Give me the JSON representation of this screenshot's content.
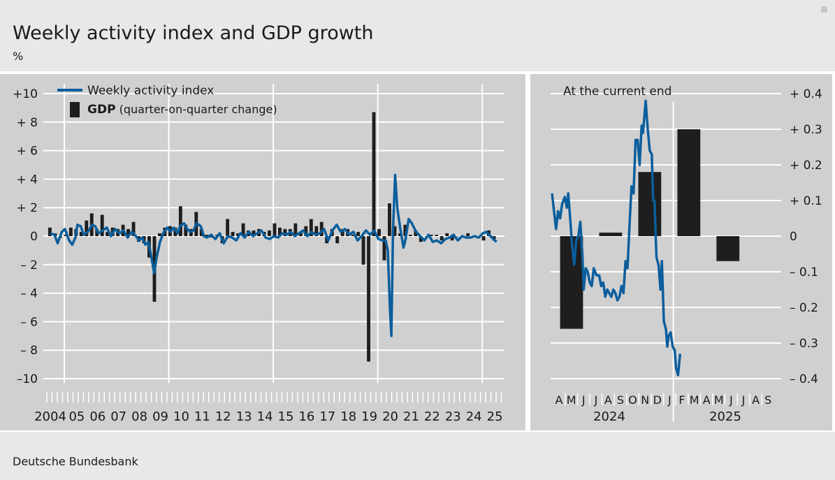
{
  "title": "Weekly activity index and GDP growth",
  "unit": "%",
  "source": "Deutsche Bundesbank",
  "colors": {
    "index_line": "#0b5e9c",
    "gdp_bar": "#1e1e1e",
    "panel": "#d0d0d0"
  },
  "chart_data": [
    {
      "type": "bar+line",
      "ylim": [
        -10,
        10
      ],
      "yticks": [
        10,
        8,
        6,
        4,
        2,
        0,
        -2,
        -4,
        -6,
        -8,
        -10
      ],
      "ytick_labels": [
        "+10",
        "+ 8",
        "+ 6",
        "+ 4",
        "+ 2",
        "0",
        "– 2",
        "– 4",
        "– 6",
        "– 8",
        "–10"
      ],
      "xlim": [
        2004,
        2026
      ],
      "year_labels": [
        "2004",
        "05",
        "06",
        "07",
        "08",
        "09",
        "10",
        "11",
        "12",
        "13",
        "14",
        "15",
        "16",
        "17",
        "18",
        "19",
        "20",
        "21",
        "22",
        "23",
        "24",
        "25"
      ],
      "legend": [
        {
          "marker": "line",
          "label": "Weekly activity index",
          "bold": false
        },
        {
          "marker": "bar",
          "label_bold": "GDP",
          "label_rest": " (quarter-on-quarter change)"
        }
      ],
      "gdp_series": {
        "name": "GDP",
        "start": 2004.0,
        "step": 0.25,
        "values": [
          0.6,
          0.2,
          -0.1,
          0.1,
          0.6,
          0.5,
          0.3,
          1.1,
          1.6,
          0.5,
          1.5,
          0.3,
          0.6,
          0.5,
          0.8,
          0.5,
          1.0,
          -0.4,
          -0.5,
          -1.5,
          -4.6,
          0.2,
          0.6,
          0.7,
          0.6,
          2.1,
          0.8,
          0.5,
          1.7,
          0.5,
          0.1,
          -0.1,
          0.1,
          -0.5,
          1.2,
          0.3,
          0.2,
          0.9,
          0.4,
          0.4,
          0.5,
          0.3,
          0.4,
          0.9,
          0.6,
          0.5,
          0.5,
          0.9,
          0.3,
          0.7,
          1.2,
          0.7,
          1.0,
          -0.5,
          0.5,
          -0.5,
          0.5,
          0.5,
          0.1,
          0.3,
          -2.0,
          -8.8,
          8.7,
          0.5,
          -1.7,
          2.3,
          0.7,
          0.2,
          0.8,
          0.1,
          0.4,
          -0.4,
          0.0,
          0.1,
          0.1,
          -0.3,
          0.2,
          -0.3,
          0.0,
          0.0,
          0.2,
          0.0,
          0.0,
          -0.3,
          0.4,
          -0.3
        ]
      },
      "index_series": {
        "name": "Weekly activity index",
        "points": [
          [
            2004.0,
            0.2
          ],
          [
            2004.2,
            0.1
          ],
          [
            2004.35,
            -0.5
          ],
          [
            2004.55,
            0.3
          ],
          [
            2004.7,
            0.5
          ],
          [
            2004.9,
            -0.3
          ],
          [
            2005.05,
            -0.6
          ],
          [
            2005.2,
            -0.1
          ],
          [
            2005.3,
            0.8
          ],
          [
            2005.45,
            0.7
          ],
          [
            2005.6,
            0.1
          ],
          [
            2005.8,
            0.3
          ],
          [
            2006.0,
            0.8
          ],
          [
            2006.15,
            0.7
          ],
          [
            2006.3,
            0.2
          ],
          [
            2006.5,
            0.4
          ],
          [
            2006.7,
            0.6
          ],
          [
            2006.9,
            0.0
          ],
          [
            2007.1,
            0.5
          ],
          [
            2007.3,
            0.2
          ],
          [
            2007.5,
            0.4
          ],
          [
            2007.7,
            -0.1
          ],
          [
            2007.9,
            0.3
          ],
          [
            2008.1,
            0.0
          ],
          [
            2008.25,
            -0.3
          ],
          [
            2008.4,
            -0.1
          ],
          [
            2008.55,
            -0.6
          ],
          [
            2008.7,
            -0.4
          ],
          [
            2008.85,
            -1.6
          ],
          [
            2008.97,
            -2.6
          ],
          [
            2009.1,
            -1.4
          ],
          [
            2009.25,
            -0.4
          ],
          [
            2009.4,
            0.2
          ],
          [
            2009.6,
            0.6
          ],
          [
            2009.75,
            0.3
          ],
          [
            2009.9,
            0.6
          ],
          [
            2010.1,
            0.2
          ],
          [
            2010.2,
            0.7
          ],
          [
            2010.4,
            0.9
          ],
          [
            2010.55,
            0.5
          ],
          [
            2010.7,
            0.3
          ],
          [
            2010.85,
            0.4
          ],
          [
            2011.0,
            0.9
          ],
          [
            2011.2,
            0.7
          ],
          [
            2011.35,
            0.0
          ],
          [
            2011.5,
            -0.1
          ],
          [
            2011.7,
            0.1
          ],
          [
            2011.9,
            -0.2
          ],
          [
            2012.1,
            0.2
          ],
          [
            2012.3,
            -0.5
          ],
          [
            2012.5,
            0.0
          ],
          [
            2012.7,
            -0.1
          ],
          [
            2012.9,
            -0.3
          ],
          [
            2013.1,
            0.2
          ],
          [
            2013.3,
            -0.1
          ],
          [
            2013.5,
            0.3
          ],
          [
            2013.7,
            0.0
          ],
          [
            2013.9,
            0.2
          ],
          [
            2014.1,
            0.4
          ],
          [
            2014.3,
            -0.1
          ],
          [
            2014.5,
            -0.2
          ],
          [
            2014.7,
            0.0
          ],
          [
            2014.9,
            -0.1
          ],
          [
            2015.1,
            0.2
          ],
          [
            2015.3,
            0.1
          ],
          [
            2015.5,
            0.3
          ],
          [
            2015.7,
            0.0
          ],
          [
            2015.9,
            0.2
          ],
          [
            2016.1,
            0.4
          ],
          [
            2016.3,
            0.0
          ],
          [
            2016.5,
            0.3
          ],
          [
            2016.7,
            0.1
          ],
          [
            2016.9,
            0.2
          ],
          [
            2017.1,
            0.5
          ],
          [
            2017.3,
            -0.3
          ],
          [
            2017.5,
            0.4
          ],
          [
            2017.7,
            0.8
          ],
          [
            2017.9,
            0.3
          ],
          [
            2018.1,
            0.5
          ],
          [
            2018.3,
            0.1
          ],
          [
            2018.5,
            0.3
          ],
          [
            2018.7,
            -0.3
          ],
          [
            2018.9,
            0.0
          ],
          [
            2019.1,
            0.4
          ],
          [
            2019.3,
            0.1
          ],
          [
            2019.5,
            0.4
          ],
          [
            2019.7,
            -0.2
          ],
          [
            2019.9,
            -0.3
          ],
          [
            2020.05,
            -0.3
          ],
          [
            2020.15,
            -1.0
          ],
          [
            2020.25,
            -5.0
          ],
          [
            2020.32,
            -7.0
          ],
          [
            2020.4,
            0.5
          ],
          [
            2020.5,
            4.3
          ],
          [
            2020.6,
            2.0
          ],
          [
            2020.75,
            0.5
          ],
          [
            2020.9,
            -0.8
          ],
          [
            2021.0,
            -0.2
          ],
          [
            2021.15,
            1.2
          ],
          [
            2021.3,
            0.9
          ],
          [
            2021.5,
            0.3
          ],
          [
            2021.7,
            0.0
          ],
          [
            2021.9,
            -0.3
          ],
          [
            2022.1,
            0.1
          ],
          [
            2022.3,
            -0.4
          ],
          [
            2022.5,
            -0.3
          ],
          [
            2022.7,
            -0.5
          ],
          [
            2022.9,
            -0.2
          ],
          [
            2023.1,
            -0.1
          ],
          [
            2023.3,
            0.1
          ],
          [
            2023.5,
            -0.3
          ],
          [
            2023.7,
            0.0
          ],
          [
            2023.9,
            -0.1
          ],
          [
            2024.1,
            -0.1
          ],
          [
            2024.3,
            0.0
          ],
          [
            2024.5,
            -0.1
          ],
          [
            2024.7,
            0.2
          ],
          [
            2024.85,
            0.3
          ],
          [
            2025.0,
            0.1
          ],
          [
            2025.2,
            -0.2
          ],
          [
            2025.35,
            -0.4
          ]
        ]
      }
    },
    {
      "type": "bar+line",
      "title": "At the current end",
      "ylim": [
        -0.4,
        0.4
      ],
      "yticks": [
        0.4,
        0.3,
        0.2,
        0.1,
        0,
        -0.1,
        -0.2,
        -0.3,
        -0.4
      ],
      "ytick_labels": [
        "+ 0.4",
        "+ 0.3",
        "+ 0.2",
        "+ 0.1",
        "0",
        "– 0.1",
        "– 0.2",
        "– 0.3",
        "– 0.4"
      ],
      "xlim": [
        3,
        20
      ],
      "month_labels": [
        "A",
        "M",
        "J",
        "J",
        "A",
        "S",
        "O",
        "N",
        "D",
        "J",
        "F",
        "M",
        "A",
        "M",
        "J",
        "J",
        "A",
        "S"
      ],
      "year_labels": [
        "2024",
        "2025"
      ],
      "gdp_bars": [
        {
          "quarter": "2024 Q2",
          "value": -0.26
        },
        {
          "quarter": "2024 Q3",
          "value": 0.01
        },
        {
          "quarter": "2024 Q4",
          "value": 0.18
        },
        {
          "quarter": "2025 Q1",
          "value": 0.3
        },
        {
          "quarter": "2025 Q2",
          "value": -0.07
        }
      ],
      "index_points": [
        [
          3.0,
          0.12
        ],
        [
          3.15,
          0.07
        ],
        [
          3.3,
          0.02
        ],
        [
          3.45,
          0.07
        ],
        [
          3.6,
          0.05
        ],
        [
          3.75,
          0.09
        ],
        [
          3.95,
          0.11
        ],
        [
          4.1,
          0.08
        ],
        [
          4.2,
          0.12
        ],
        [
          4.35,
          0.05
        ],
        [
          4.5,
          -0.03
        ],
        [
          4.65,
          -0.08
        ],
        [
          4.8,
          -0.01
        ],
        [
          4.95,
          0.0
        ],
        [
          5.1,
          0.04
        ],
        [
          5.25,
          -0.05
        ],
        [
          5.35,
          -0.15
        ],
        [
          5.5,
          -0.09
        ],
        [
          5.65,
          -0.1
        ],
        [
          5.8,
          -0.13
        ],
        [
          5.95,
          -0.14
        ],
        [
          6.1,
          -0.09
        ],
        [
          6.3,
          -0.11
        ],
        [
          6.5,
          -0.11
        ],
        [
          6.65,
          -0.14
        ],
        [
          6.8,
          -0.13
        ],
        [
          6.95,
          -0.17
        ],
        [
          7.1,
          -0.15
        ],
        [
          7.25,
          -0.16
        ],
        [
          7.4,
          -0.17
        ],
        [
          7.55,
          -0.15
        ],
        [
          7.7,
          -0.16
        ],
        [
          7.85,
          -0.18
        ],
        [
          8.0,
          -0.17
        ],
        [
          8.15,
          -0.14
        ],
        [
          8.3,
          -0.16
        ],
        [
          8.45,
          -0.07
        ],
        [
          8.6,
          -0.09
        ],
        [
          8.75,
          0.03
        ],
        [
          8.9,
          0.14
        ],
        [
          9.05,
          0.12
        ],
        [
          9.2,
          0.27
        ],
        [
          9.35,
          0.27
        ],
        [
          9.5,
          0.2
        ],
        [
          9.65,
          0.31
        ],
        [
          9.75,
          0.29
        ],
        [
          9.95,
          0.38
        ],
        [
          10.1,
          0.3
        ],
        [
          10.25,
          0.24
        ],
        [
          10.4,
          0.23
        ],
        [
          10.5,
          0.1
        ],
        [
          10.6,
          0.1
        ],
        [
          10.75,
          -0.06
        ],
        [
          10.9,
          -0.08
        ],
        [
          11.05,
          -0.15
        ],
        [
          11.15,
          -0.07
        ],
        [
          11.3,
          -0.24
        ],
        [
          11.45,
          -0.26
        ],
        [
          11.55,
          -0.31
        ],
        [
          11.65,
          -0.28
        ],
        [
          11.8,
          -0.27
        ],
        [
          11.95,
          -0.31
        ],
        [
          12.1,
          -0.32
        ],
        [
          12.2,
          -0.37
        ],
        [
          12.35,
          -0.39
        ],
        [
          12.5,
          -0.33
        ]
      ]
    }
  ]
}
